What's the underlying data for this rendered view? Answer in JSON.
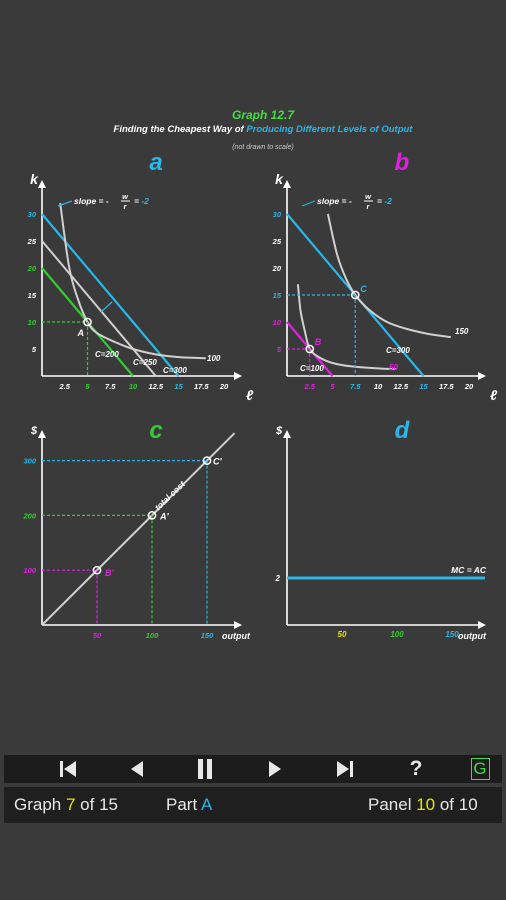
{
  "header": {
    "title": "Graph 12.7",
    "subtitle_prefix": "Finding the Cheapest Way of ",
    "subtitle_highlight": "Producing Different Levels of Output",
    "note": "(not drawn to scale)"
  },
  "colors": {
    "background": "#3a3a3a",
    "curve": "#d0d0d0",
    "cyan": "#29b6e8",
    "green": "#33cc33",
    "magenta": "#dd22dd",
    "yellow": "#e6e600",
    "title_green": "#44dd44"
  },
  "panels": {
    "a": {
      "letter": "a",
      "y_axis": "k",
      "x_axis": "ℓ",
      "slope_label": "slope = -",
      "slope_num": "w",
      "slope_den": "r",
      "slope_value": "= -2",
      "x_ticks": [
        "2.5",
        "5",
        "7.5",
        "10",
        "12.5",
        "15",
        "17.5",
        "20"
      ],
      "y_ticks": [
        "30",
        "25",
        "20",
        "15",
        "10",
        "5"
      ],
      "point": "A",
      "isocost_labels": [
        "C=200",
        "C=250",
        "C=300"
      ],
      "isoquant_label": "100"
    },
    "b": {
      "letter": "b",
      "y_axis": "k",
      "x_axis": "ℓ",
      "slope_label": "slope = -",
      "slope_num": "w",
      "slope_den": "r",
      "slope_value": "= -2",
      "x_ticks": [
        "2.5",
        "5",
        "7.5",
        "10",
        "12.5",
        "15",
        "17.5",
        "20"
      ],
      "y_ticks": [
        "30",
        "25",
        "20",
        "15",
        "10",
        "5"
      ],
      "points": [
        "C",
        "B"
      ],
      "isocost_labels": [
        "C=300",
        "C=100"
      ],
      "isoquant_labels": [
        "150",
        "50"
      ]
    },
    "c": {
      "letter": "c",
      "y_axis": "$",
      "x_axis": "output",
      "y_ticks": [
        "300",
        "200",
        "100"
      ],
      "x_ticks": [
        "50",
        "100",
        "150"
      ],
      "curve_label": "total cost",
      "points": [
        "C'",
        "A'",
        "B'"
      ]
    },
    "d": {
      "letter": "d",
      "y_axis": "$",
      "x_axis": "output",
      "y_ticks": [
        "2"
      ],
      "x_ticks": [
        "50",
        "100",
        "150"
      ],
      "line_label": "MC = AC"
    }
  },
  "chart_data": [
    {
      "type": "line",
      "title": "a",
      "xlabel": "ℓ",
      "ylabel": "k",
      "xlim": [
        0,
        21
      ],
      "ylim": [
        0,
        33
      ],
      "series": [
        {
          "name": "C=200",
          "x": [
            0,
            10
          ],
          "y": [
            20,
            0
          ]
        },
        {
          "name": "C=250",
          "x": [
            0,
            12.5
          ],
          "y": [
            25,
            0
          ]
        },
        {
          "name": "C=300",
          "x": [
            0,
            15
          ],
          "y": [
            30,
            0
          ]
        },
        {
          "name": "100",
          "x": [
            2,
            3,
            4,
            5,
            6,
            8,
            10,
            12.5,
            15,
            18
          ],
          "y": [
            32,
            20,
            14,
            10,
            8,
            6.3,
            5,
            4,
            3.5,
            3.3
          ]
        }
      ],
      "points": [
        {
          "label": "A",
          "x": 5,
          "y": 10
        }
      ]
    },
    {
      "type": "line",
      "title": "b",
      "xlabel": "ℓ",
      "ylabel": "k",
      "xlim": [
        0,
        21
      ],
      "ylim": [
        0,
        33
      ],
      "series": [
        {
          "name": "C=300",
          "x": [
            0,
            15
          ],
          "y": [
            30,
            0
          ]
        },
        {
          "name": "C=100",
          "x": [
            0,
            5
          ],
          "y": [
            10,
            0
          ]
        },
        {
          "name": "150",
          "x": [
            4.5,
            5.5,
            6.5,
            7.5,
            9,
            11,
            13,
            15.5,
            18
          ],
          "y": [
            30,
            22.5,
            18,
            15,
            12.3,
            10,
            8.8,
            7.8,
            7.2
          ]
        },
        {
          "name": "50",
          "x": [
            1.2,
            1.5,
            2,
            2.5,
            3.5,
            5,
            7,
            10,
            12
          ],
          "y": [
            17,
            12,
            8,
            5,
            3.5,
            2.4,
            1.8,
            1.4,
            1.3
          ]
        }
      ],
      "points": [
        {
          "label": "C",
          "x": 7.5,
          "y": 15
        },
        {
          "label": "B",
          "x": 2.5,
          "y": 5
        }
      ]
    },
    {
      "type": "line",
      "title": "c",
      "xlabel": "output",
      "ylabel": "$",
      "xlim": [
        0,
        180
      ],
      "ylim": [
        0,
        360
      ],
      "series": [
        {
          "name": "total cost",
          "x": [
            0,
            175
          ],
          "y": [
            0,
            350
          ]
        }
      ],
      "points": [
        {
          "label": "B'",
          "x": 50,
          "y": 100
        },
        {
          "label": "A'",
          "x": 100,
          "y": 200
        },
        {
          "label": "C'",
          "x": 150,
          "y": 300
        }
      ]
    },
    {
      "type": "line",
      "title": "d",
      "xlabel": "output",
      "ylabel": "$",
      "xlim": [
        0,
        180
      ],
      "ylim": [
        0,
        6.5
      ],
      "series": [
        {
          "name": "MC = AC",
          "x": [
            0,
            180
          ],
          "y": [
            2,
            2
          ]
        }
      ]
    }
  ],
  "controls": {
    "first": "first-icon",
    "prev": "prev-icon",
    "pause": "pause-icon",
    "next": "next-icon",
    "last": "last-icon",
    "help": "?",
    "glossary": "G"
  },
  "status": {
    "graph_label": "Graph ",
    "graph_num": "7",
    "graph_of": " of 15",
    "part_label": "Part ",
    "part_value": "A",
    "panel_label": "Panel ",
    "panel_num": "10",
    "panel_of": " of 10"
  }
}
